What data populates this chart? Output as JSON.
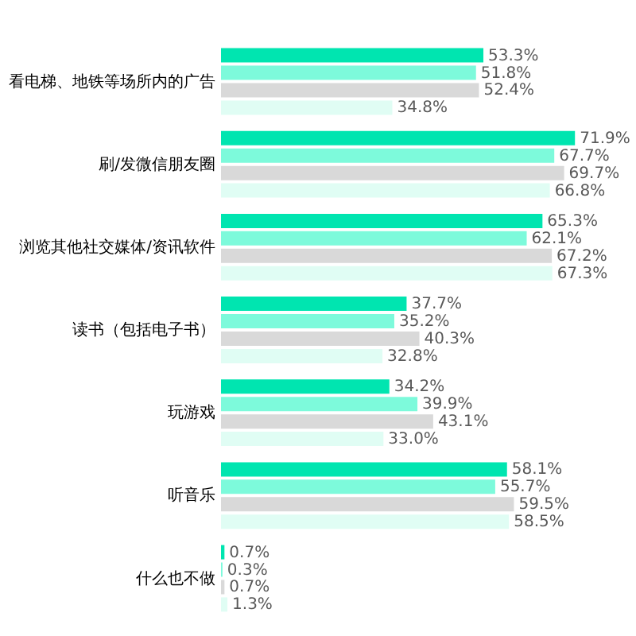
{
  "chart_data": {
    "type": "bar",
    "orientation": "horizontal",
    "categories": [
      "看电梯、地铁等场所内的广告",
      "刷/发微信朋友圈",
      "浏览其他社交媒体/资讯软件",
      "读书（包括电子书）",
      "玩游戏",
      "听音乐",
      "什么也不做"
    ],
    "series": [
      {
        "color": "#00e5b0",
        "values": [
          53.3,
          71.9,
          65.3,
          37.7,
          34.2,
          58.1,
          0.7
        ],
        "value_labels": [
          "53.3%",
          "71.9%",
          "65.3%",
          "37.7%",
          "34.2%",
          "58.1%",
          "0.7%"
        ]
      },
      {
        "color": "#7dfadb",
        "values": [
          51.8,
          67.7,
          62.1,
          35.2,
          39.9,
          55.7,
          0.3
        ],
        "value_labels": [
          "51.8%",
          "67.7%",
          "62.1%",
          "35.2%",
          "39.9%",
          "55.7%",
          "0.3%"
        ]
      },
      {
        "color": "#d9d9d9",
        "values": [
          52.4,
          69.7,
          67.2,
          40.3,
          43.1,
          59.5,
          0.7
        ],
        "value_labels": [
          "52.4%",
          "69.7%",
          "67.2%",
          "40.3%",
          "43.1%",
          "59.5%",
          "0.7%"
        ]
      },
      {
        "color": "#e0fdf4",
        "values": [
          34.8,
          66.8,
          67.3,
          32.8,
          33.0,
          58.5,
          1.3
        ],
        "value_labels": [
          "34.8%",
          "66.8%",
          "67.3%",
          "32.8%",
          "33.0%",
          "58.5%",
          "1.3%"
        ]
      }
    ],
    "stacked": false
  }
}
